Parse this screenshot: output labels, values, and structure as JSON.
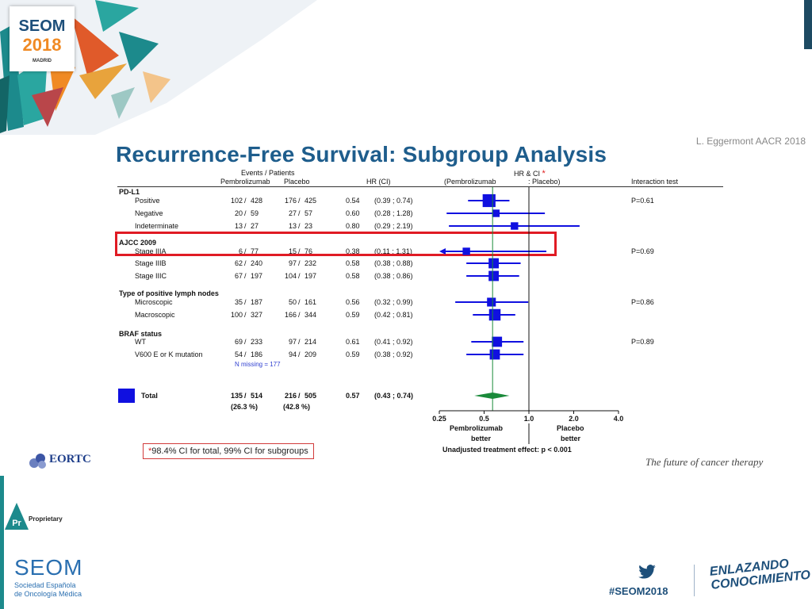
{
  "branding": {
    "logo_top": "SEOM",
    "logo_year": "2018",
    "logo_city": "MADRID",
    "eortc": "EORTC",
    "tagline": "The future of cancer therapy",
    "proprietary_badge": "Pr",
    "proprietary_label": "Proprietary",
    "seom_name": "SEOM",
    "seom_line1": "Sociedad Española",
    "seom_line2": "de Oncología Médica",
    "hashtag": "#SEOM2018",
    "motto_line1": "ENLAZANDO",
    "motto_line2": "CONOCIMIENTO",
    "colors": {
      "seom_blue": "#1d4f7a",
      "title_blue": "#1e5d8c",
      "orange": "#f08a24",
      "teal": "#1c8a8c",
      "marker_blue": "#1010e0",
      "highlight_red": "#e01b24",
      "total_green": "#1a8a3a"
    }
  },
  "slide": {
    "citation": "L. Eggermont AACR 2018",
    "title": "Recurrence-Free Survival: Subgroup Analysis"
  },
  "table": {
    "events_header": "Events / Patients",
    "col_pembro": "Pembrolizumab",
    "col_placebo": "Placebo",
    "col_hr": "HR (CI)",
    "hrci_header": "HR & CI",
    "hrci_star": "*",
    "pembro_paren": "(Pembrolizumab",
    "placebo_paren": ": Placebo)",
    "interaction_header": "Interaction test",
    "missing_note": "N missing = 177"
  },
  "chart_data": {
    "type": "forest",
    "x_scale": "log",
    "xlim": [
      0.25,
      4.0
    ],
    "ticks": [
      0.25,
      0.5,
      1.0,
      2.0,
      4.0
    ],
    "tick_labels": [
      "0.25",
      "0.5",
      "1.0",
      "2.0",
      "4.0"
    ],
    "reference_line": 1.0,
    "overall_line": 0.57,
    "left_label": [
      "Pembrolizumab",
      "better"
    ],
    "right_label": [
      "Placebo",
      "better"
    ],
    "effect_note": "Unadjusted treatment effect: p < 0.001",
    "groups": [
      {
        "label": "PD-L1",
        "interaction": "P=0.61",
        "rows": [
          {
            "label": "Positive",
            "pem_e": "102",
            "pem_n": "428",
            "pla_e": "176",
            "pla_n": "425",
            "hr": 0.54,
            "hr_text": "0.54",
            "lo": 0.39,
            "hi": 0.74,
            "ci_text": "(0.39 ; 0.74)",
            "size": 3
          },
          {
            "label": "Negative",
            "pem_e": "20",
            "pem_n": "59",
            "pla_e": "27",
            "pla_n": "57",
            "hr": 0.6,
            "hr_text": "0.60",
            "lo": 0.28,
            "hi": 1.28,
            "ci_text": "(0.28 ; 1.28)",
            "size": 1
          },
          {
            "label": "Indeterminate",
            "pem_e": "13",
            "pem_n": "27",
            "pla_e": "13",
            "pla_n": "23",
            "hr": 0.8,
            "hr_text": "0.80",
            "lo": 0.29,
            "hi": 2.19,
            "ci_text": "(0.29 ; 2.19)",
            "size": 1
          }
        ]
      },
      {
        "label": "AJCC 2009",
        "interaction": "P=0.69",
        "rows": [
          {
            "label": "Stage IIIA",
            "pem_e": "6",
            "pem_n": "77",
            "pla_e": "15",
            "pla_n": "76",
            "hr": 0.38,
            "hr_text": "0.38",
            "lo": 0.11,
            "hi": 1.31,
            "ci_text": "(0.11 ; 1.31)",
            "size": 1,
            "arrow_left": true,
            "highlight": true
          },
          {
            "label": "Stage IIIB",
            "pem_e": "62",
            "pem_n": "240",
            "pla_e": "97",
            "pla_n": "232",
            "hr": 0.58,
            "hr_text": "0.58",
            "lo": 0.38,
            "hi": 0.88,
            "ci_text": "(0.38 ; 0.88)",
            "size": 2
          },
          {
            "label": "Stage IIIC",
            "pem_e": "67",
            "pem_n": "197",
            "pla_e": "104",
            "pla_n": "197",
            "hr": 0.58,
            "hr_text": "0.58",
            "lo": 0.38,
            "hi": 0.86,
            "ci_text": "(0.38 ; 0.86)",
            "size": 2
          }
        ]
      },
      {
        "label": "Type of positive lymph nodes",
        "interaction": "P=0.86",
        "rows": [
          {
            "label": "Microscopic",
            "pem_e": "35",
            "pem_n": "187",
            "pla_e": "50",
            "pla_n": "161",
            "hr": 0.56,
            "hr_text": "0.56",
            "lo": 0.32,
            "hi": 0.99,
            "ci_text": "(0.32 ; 0.99)",
            "size": 1.5
          },
          {
            "label": "Macroscopic",
            "pem_e": "100",
            "pem_n": "327",
            "pla_e": "166",
            "pla_n": "344",
            "hr": 0.59,
            "hr_text": "0.59",
            "lo": 0.42,
            "hi": 0.81,
            "ci_text": "(0.42 ; 0.81)",
            "size": 2.5
          }
        ]
      },
      {
        "label": "BRAF status",
        "interaction": "P=0.89",
        "rows": [
          {
            "label": "WT",
            "pem_e": "69",
            "pem_n": "233",
            "pla_e": "97",
            "pla_n": "214",
            "hr": 0.61,
            "hr_text": "0.61",
            "lo": 0.41,
            "hi": 0.92,
            "ci_text": "(0.41 ; 0.92)",
            "size": 2
          },
          {
            "label": "V600 E or K mutation",
            "pem_e": "54",
            "pem_n": "186",
            "pla_e": "94",
            "pla_n": "209",
            "hr": 0.59,
            "hr_text": "0.59",
            "lo": 0.38,
            "hi": 0.92,
            "ci_text": "(0.38 ; 0.92)",
            "size": 2
          }
        ]
      }
    ],
    "total": {
      "label": "Total",
      "pem_e": "135",
      "pem_n": "514",
      "pem_pct": "(26.3 %)",
      "pla_e": "216",
      "pla_n": "505",
      "pla_pct": "(42.8 %)",
      "hr": 0.57,
      "hr_text": "0.57",
      "lo": 0.43,
      "hi": 0.74,
      "ci_text": "(0.43 ; 0.74)"
    }
  },
  "footnote": {
    "star": "*",
    "text": "98.4% CI for total, 99% CI for subgroups"
  }
}
